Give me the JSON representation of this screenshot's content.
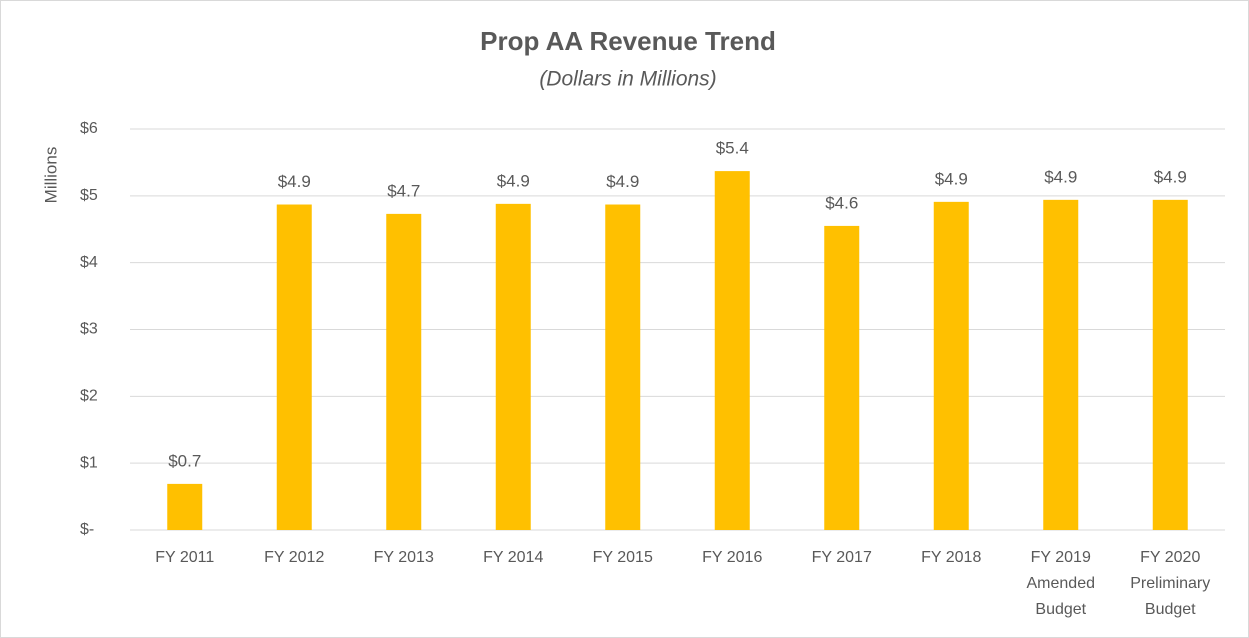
{
  "chart_data": {
    "type": "bar",
    "title": "Prop AA Revenue Trend",
    "subtitle": "(Dollars in Millions)",
    "y_label": "Millions",
    "categories": [
      [
        "FY 2011"
      ],
      [
        "FY 2012"
      ],
      [
        "FY 2013"
      ],
      [
        "FY 2014"
      ],
      [
        "FY 2015"
      ],
      [
        "FY 2016"
      ],
      [
        "FY 2017"
      ],
      [
        "FY 2018"
      ],
      [
        "FY 2019",
        "Amended",
        "Budget"
      ],
      [
        "FY 2020",
        "Preliminary",
        "Budget"
      ]
    ],
    "values": [
      0.69,
      4.87,
      4.73,
      4.88,
      4.87,
      5.37,
      4.55,
      4.91,
      4.94,
      4.94
    ],
    "value_labels": [
      "$0.7",
      "$4.9",
      "$4.7",
      "$4.9",
      "$4.9",
      "$5.4",
      "$4.6",
      "$4.9",
      "$4.9",
      "$4.9"
    ],
    "color": "#ffc000",
    "ylim": [
      0,
      6
    ],
    "yticks": [
      {
        "value": 0,
        "label": "$-"
      },
      {
        "value": 1,
        "label": "$1"
      },
      {
        "value": 2,
        "label": "$2"
      },
      {
        "value": 3,
        "label": "$3"
      },
      {
        "value": 4,
        "label": "$4"
      },
      {
        "value": 5,
        "label": "$5"
      },
      {
        "value": 6,
        "label": "$6"
      }
    ],
    "grid": true
  }
}
